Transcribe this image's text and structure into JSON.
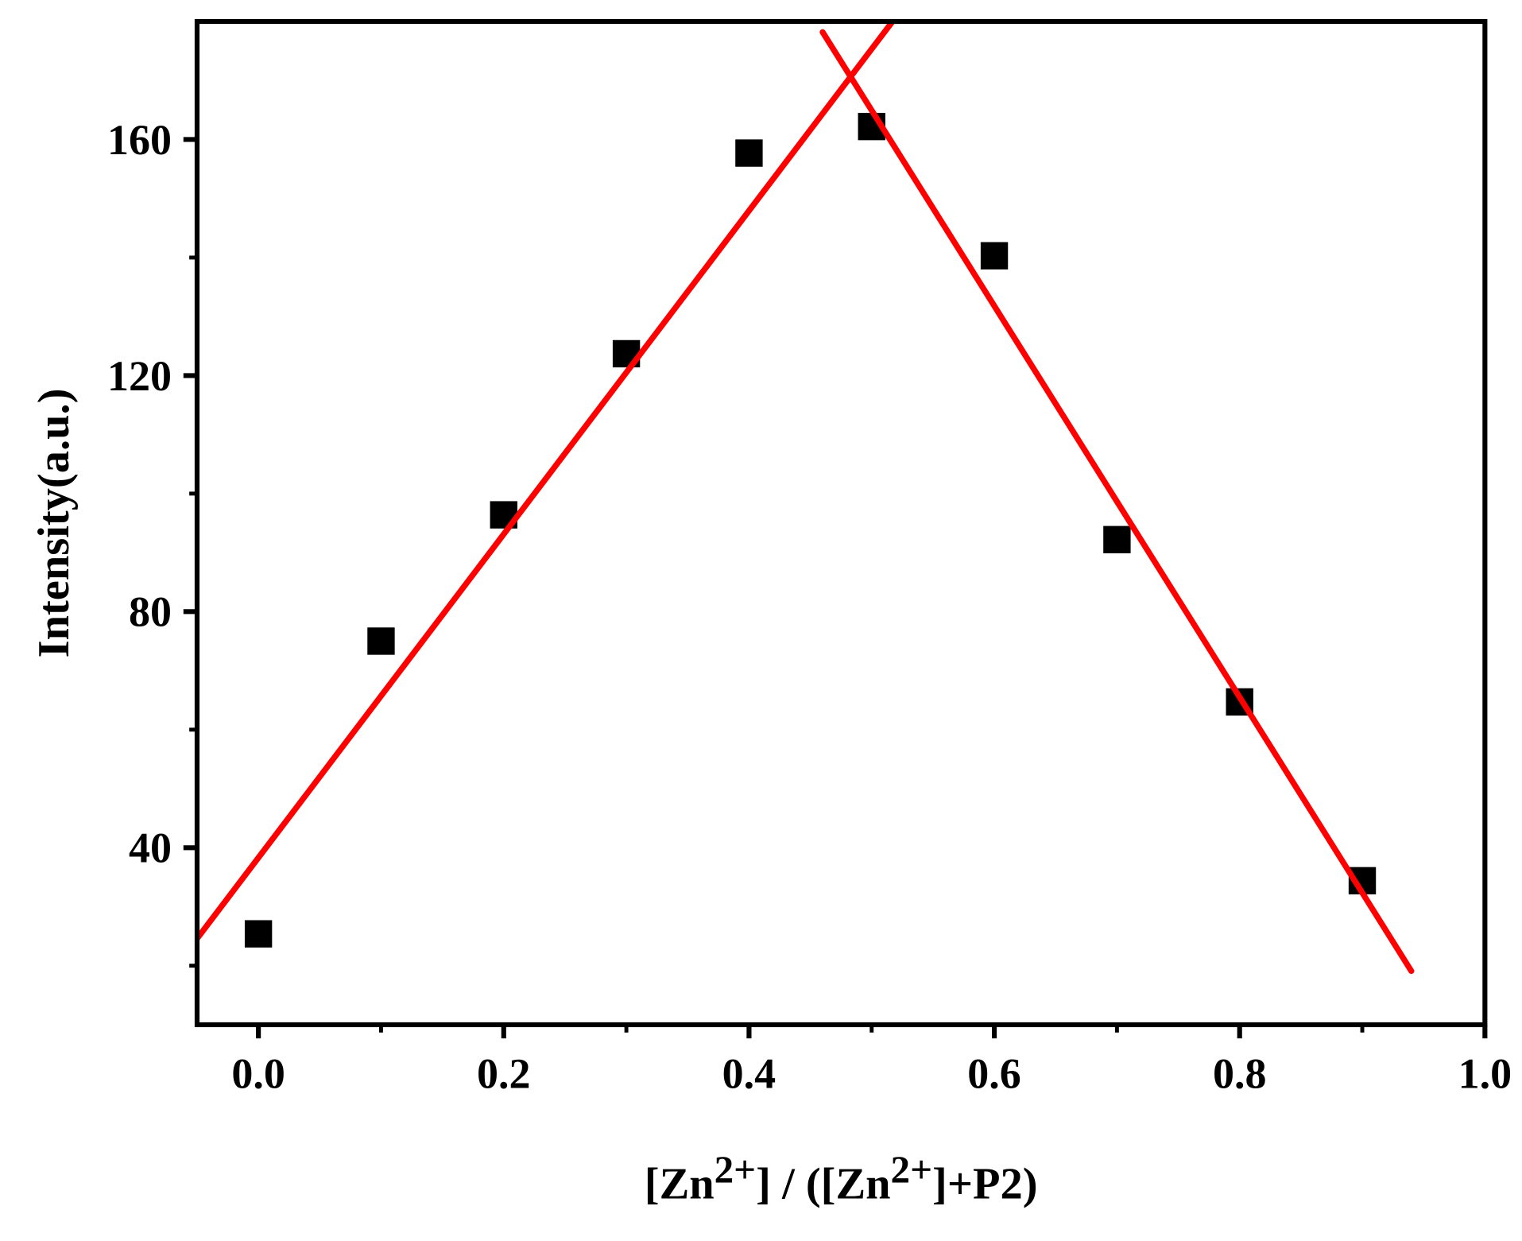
{
  "chart_data": {
    "type": "scatter",
    "xlabel_parts": [
      "[Zn",
      "2+",
      "] / ([Zn",
      "2+",
      "]+P2)"
    ],
    "ylabel": "Intensity(a.u.)",
    "xlim": [
      -0.05,
      1.0
    ],
    "ylim": [
      10,
      180
    ],
    "xticks": [
      {
        "value": 0,
        "label": "0.0"
      },
      {
        "value": 0.2,
        "label": "0.2"
      },
      {
        "value": 0.4,
        "label": "0.4"
      },
      {
        "value": 0.6,
        "label": "0.6"
      },
      {
        "value": 0.8,
        "label": "0.8"
      },
      {
        "value": 1.0,
        "label": "1.0"
      }
    ],
    "xminor_ticks": [
      0.1,
      0.3,
      0.5,
      0.7,
      0.9
    ],
    "yticks": [
      40,
      80,
      120,
      160
    ],
    "yminor_ticks": [
      20,
      60,
      100,
      140
    ],
    "grid": false,
    "series": [
      {
        "mode": "markers",
        "color": "#000000",
        "x": [
          0,
          0.1,
          0.2,
          0.3,
          0.4,
          0.5,
          0.6,
          0.7,
          0.8,
          0.9
        ],
        "values": [
          25.4,
          75,
          96.4,
          123.7,
          157.7,
          162.2,
          140.3,
          92.2,
          64.7,
          34.4
        ]
      },
      {
        "mode": "lines",
        "color": "#ff0000",
        "x": [
          -0.05,
          0.517
        ],
        "values": [
          24.6,
          180
        ]
      },
      {
        "mode": "lines",
        "color": "#ff0000",
        "x": [
          0.46,
          0.94
        ],
        "values": [
          178.2,
          19.1
        ]
      }
    ]
  }
}
